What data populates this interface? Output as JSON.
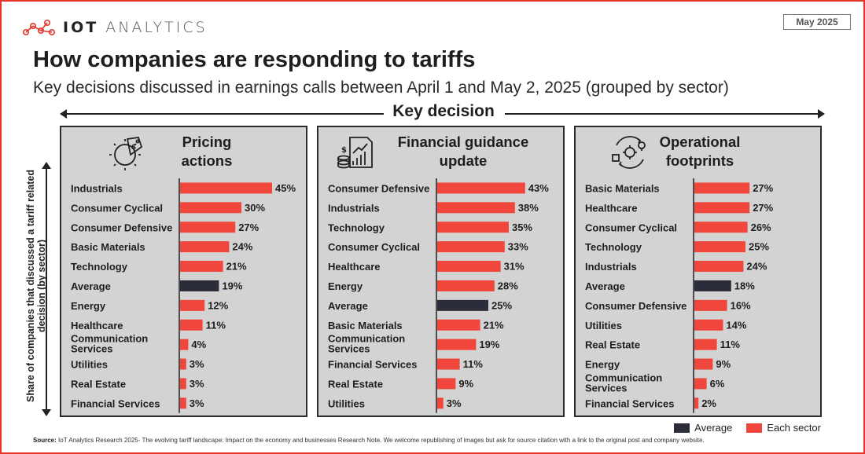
{
  "brand": {
    "name_bold": "IOT",
    "name_light": "ANALYTICS"
  },
  "date": "May 2025",
  "title": "How companies are responding to tariffs",
  "subtitle": "Key decisions discussed in earnings calls between April 1 and May 2, 2025 (grouped by sector)",
  "key_decision_label": "Key decision",
  "y_axis_label": "Share of companies that discussed a tariff related decision (by sector)",
  "legend": {
    "average": "Average",
    "sector": "Each sector"
  },
  "source_label": "Source:",
  "source_text": "IoT Analytics Research 2025- The evolving tariff landscape: Impact on the economy and businesses Research Note. We welcome republishing of images but ask for source citation with a link to the original post and company website.",
  "colors": {
    "sector": "#f0463c",
    "average": "#2b2d3a",
    "panel_bg": "#d3d3d3",
    "accent": "#e5352b"
  },
  "chart_data": [
    {
      "type": "bar",
      "orientation": "horizontal",
      "title_lines": [
        "Pricing",
        "actions"
      ],
      "icon": "price-tag-gear-icon",
      "categories": [
        "Industrials",
        "Consumer Cyclical",
        "Consumer Defensive",
        "Basic Materials",
        "Technology",
        "Average",
        "Energy",
        "Healthcare",
        "Communication Services",
        "Utilities",
        "Real Estate",
        "Financial Services"
      ],
      "values": [
        45,
        30,
        27,
        24,
        21,
        19,
        12,
        11,
        4,
        3,
        3,
        3
      ],
      "value_labels": [
        "45%",
        "30%",
        "27%",
        "24%",
        "21%",
        "19%",
        "12%",
        "11%",
        "4%",
        "3%",
        "3%",
        "3%"
      ],
      "unit": "%",
      "xlim": [
        0,
        50
      ]
    },
    {
      "type": "bar",
      "orientation": "horizontal",
      "title_lines": [
        "Financial guidance",
        "update"
      ],
      "icon": "financial-report-icon",
      "categories": [
        "Consumer Defensive",
        "Industrials",
        "Technology",
        "Consumer Cyclical",
        "Healthcare",
        "Energy",
        "Average",
        "Basic Materials",
        "Communication Services",
        "Financial Services",
        "Real Estate",
        "Utilities"
      ],
      "values": [
        43,
        38,
        35,
        33,
        31,
        28,
        25,
        21,
        19,
        11,
        9,
        3
      ],
      "value_labels": [
        "43%",
        "38%",
        "35%",
        "33%",
        "31%",
        "28%",
        "25%",
        "21%",
        "19%",
        "11%",
        "9%",
        "3%"
      ],
      "unit": "%",
      "xlim": [
        0,
        50
      ]
    },
    {
      "type": "bar",
      "orientation": "horizontal",
      "title_lines": [
        "Operational",
        "footprints"
      ],
      "icon": "operations-cycle-icon",
      "categories": [
        "Basic Materials",
        "Healthcare",
        "Consumer Cyclical",
        "Technology",
        "Industrials",
        "Average",
        "Consumer Defensive",
        "Utilities",
        "Real Estate",
        "Energy",
        "Communication Services",
        "Financial Services"
      ],
      "values": [
        27,
        27,
        26,
        25,
        24,
        18,
        16,
        14,
        11,
        9,
        6,
        2
      ],
      "value_labels": [
        "27%",
        "27%",
        "26%",
        "25%",
        "24%",
        "18%",
        "16%",
        "14%",
        "11%",
        "9%",
        "6%",
        "2%"
      ],
      "unit": "%",
      "xlim": [
        0,
        50
      ]
    }
  ]
}
